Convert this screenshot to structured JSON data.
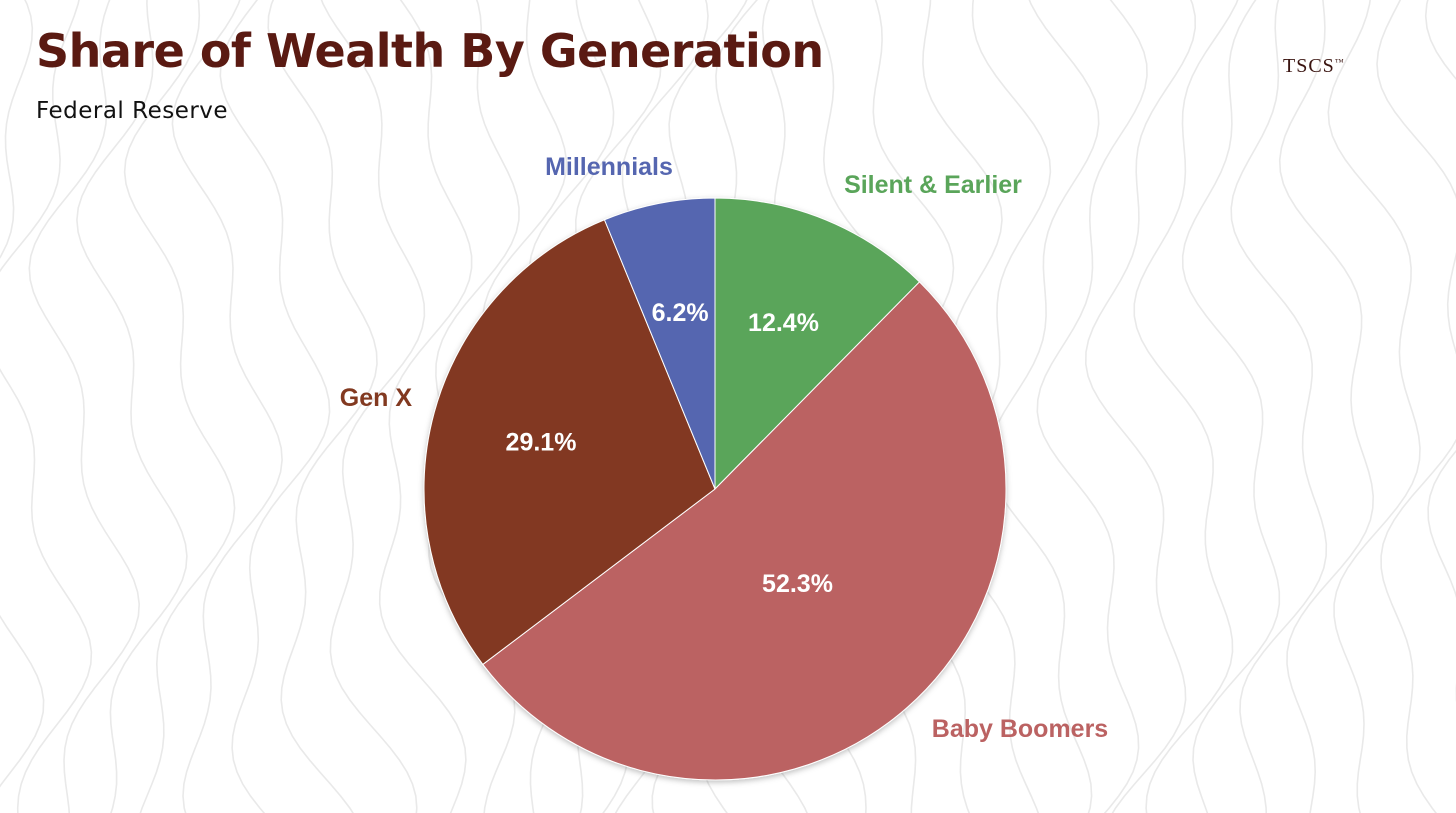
{
  "header": {
    "title": "Share of Wealth By Generation",
    "subtitle": "Federal Reserve",
    "brand": "TSCS",
    "brand_mark": "™"
  },
  "colors": {
    "title": "#5a1a12",
    "background_lines": "#e9e9e9"
  },
  "chart_data": {
    "type": "pie",
    "title": "Share of Wealth By Generation",
    "start": "12 o'clock",
    "direction": "clockwise",
    "slices": [
      {
        "label": "Silent & Earlier",
        "value": 12.4,
        "value_label": "12.4%",
        "color": "#5aa55a"
      },
      {
        "label": "Baby Boomers",
        "value": 52.3,
        "value_label": "52.3%",
        "color": "#bb6262"
      },
      {
        "label": "Gen X",
        "value": 29.1,
        "value_label": "29.1%",
        "color": "#823920"
      },
      {
        "label": "Millennials",
        "value": 6.2,
        "value_label": "6.2%",
        "color": "#5566b0"
      }
    ]
  }
}
